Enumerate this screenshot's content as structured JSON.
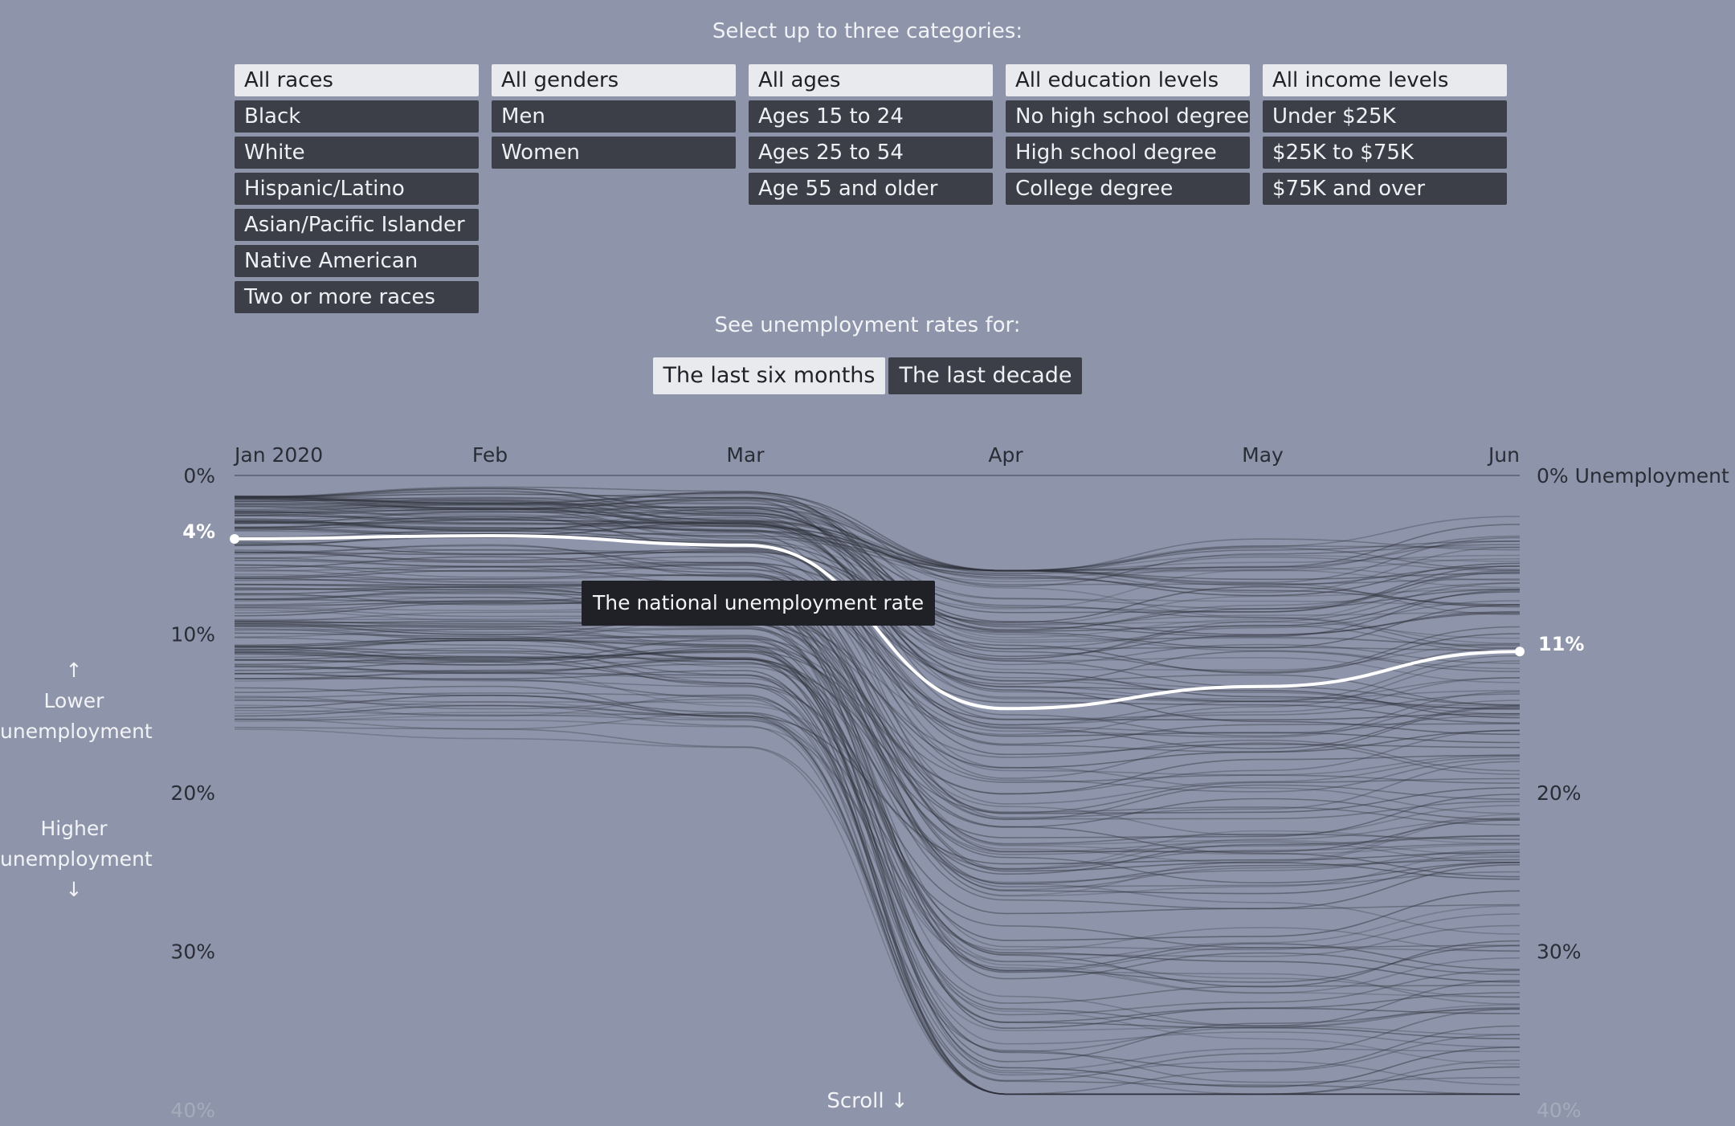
{
  "header": {
    "prompt": "Select up to three categories:"
  },
  "category_groups": [
    {
      "name": "race",
      "options": [
        {
          "label": "All races",
          "selected": true
        },
        {
          "label": "Black",
          "selected": false
        },
        {
          "label": "White",
          "selected": false
        },
        {
          "label": "Hispanic/Latino",
          "selected": false
        },
        {
          "label": "Asian/Pacific Islander",
          "selected": false
        },
        {
          "label": "Native American",
          "selected": false
        },
        {
          "label": "Two or more races",
          "selected": false
        }
      ]
    },
    {
      "name": "gender",
      "options": [
        {
          "label": "All genders",
          "selected": true
        },
        {
          "label": "Men",
          "selected": false
        },
        {
          "label": "Women",
          "selected": false
        }
      ]
    },
    {
      "name": "age",
      "options": [
        {
          "label": "All ages",
          "selected": true
        },
        {
          "label": "Ages 15 to 24",
          "selected": false
        },
        {
          "label": "Ages 25 to 54",
          "selected": false
        },
        {
          "label": "Age 55 and older",
          "selected": false
        }
      ]
    },
    {
      "name": "education",
      "options": [
        {
          "label": "All education levels",
          "selected": true
        },
        {
          "label": "No high school degree",
          "selected": false
        },
        {
          "label": "High school degree",
          "selected": false
        },
        {
          "label": "College degree",
          "selected": false
        }
      ]
    },
    {
      "name": "income",
      "options": [
        {
          "label": "All income levels",
          "selected": true
        },
        {
          "label": "Under $25K",
          "selected": false
        },
        {
          "label": "$25K to $75K",
          "selected": false
        },
        {
          "label": "$75K and over",
          "selected": false
        }
      ]
    }
  ],
  "time_range": {
    "prompt": "See unemployment rates for:",
    "options": [
      {
        "label": "The last six months",
        "selected": true
      },
      {
        "label": "The last decade",
        "selected": false
      }
    ]
  },
  "chart_data": {
    "type": "line",
    "x": [
      "Jan 2020",
      "Feb",
      "Mar",
      "Apr",
      "May",
      "Jun"
    ],
    "ylim": [
      0,
      40
    ],
    "y_inverted": true,
    "y_ticks_left": [
      "0%",
      "10%",
      "20%",
      "30%",
      "40%"
    ],
    "y_ticks_right": [
      "0% Unemployment",
      "20%",
      "30%",
      "40%"
    ],
    "national_series": {
      "values": [
        4.0,
        3.8,
        4.4,
        14.7,
        13.3,
        11.1
      ],
      "color": "#ffffff"
    },
    "start_label": "4%",
    "end_label": "11%",
    "background_line_color": "#2e313a",
    "annotation": "The national unemployment rate"
  },
  "axis_notes": {
    "lower": [
      "↑",
      "Lower",
      "unemployment"
    ],
    "higher": [
      "Higher",
      "unemployment",
      "↓"
    ]
  },
  "footer": {
    "scroll": "Scroll ↓"
  }
}
